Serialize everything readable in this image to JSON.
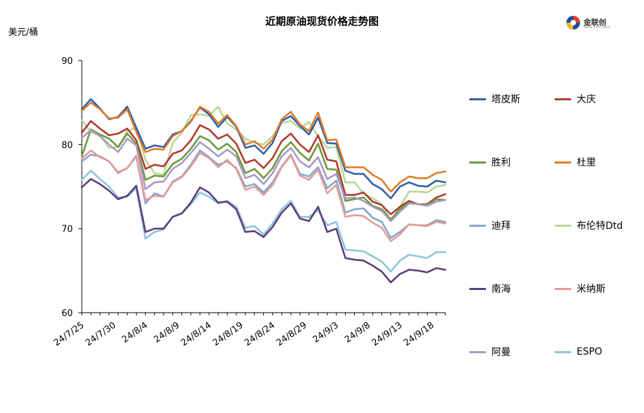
{
  "title": "近期原油现货价格走势图",
  "unit": "美元/桶",
  "logo": {
    "text": "金联创",
    "sub": "www.315i.com"
  },
  "chart_data": {
    "type": "line",
    "title": "近期原油现货价格走势图",
    "ylabel": "美元/桶",
    "ylim": [
      60,
      90
    ],
    "yticks": [
      60,
      70,
      80,
      90
    ],
    "grid": false,
    "legend_position": "right",
    "xtick_labels": [
      "24/7/25",
      "24/7/30",
      "24/8/4",
      "24/8/9",
      "24/8/14",
      "24/8/19",
      "24/8/24",
      "24/8/29",
      "24/9/3",
      "24/9/8",
      "24/9/13",
      "24/9/18"
    ],
    "x": [
      "7/25",
      "7/26",
      "7/29",
      "7/30",
      "7/31",
      "8/1",
      "8/2",
      "8/5",
      "8/6",
      "8/7",
      "8/8",
      "8/9",
      "8/12",
      "8/13",
      "8/14",
      "8/15",
      "8/16",
      "8/19",
      "8/20",
      "8/21",
      "8/22",
      "8/23",
      "8/26",
      "8/27",
      "8/28",
      "8/29",
      "8/30",
      "9/2",
      "9/3",
      "9/4",
      "9/5",
      "9/6",
      "9/9",
      "9/10",
      "9/11",
      "9/12",
      "9/13",
      "9/16",
      "9/17",
      "9/18",
      "9/19"
    ],
    "series": [
      {
        "name": "塔皮斯",
        "color": "#2f5fa8",
        "values": [
          84.2,
          85.4,
          84.3,
          83.0,
          83.3,
          84.5,
          82.0,
          79.5,
          79.9,
          79.7,
          81.2,
          81.6,
          82.8,
          84.4,
          83.6,
          82.1,
          83.3,
          82.1,
          79.6,
          79.9,
          78.9,
          80.2,
          82.8,
          83.4,
          82.2,
          81.2,
          83.2,
          80.2,
          80.1,
          76.9,
          76.5,
          76.5,
          75.3,
          74.7,
          73.6,
          75.0,
          75.5,
          75.1,
          75.0,
          75.7,
          75.5
        ]
      },
      {
        "name": "大庆",
        "color": "#b03a2e",
        "values": [
          81.4,
          82.8,
          81.9,
          81.1,
          81.3,
          81.9,
          80.5,
          77.1,
          77.6,
          77.4,
          78.9,
          79.3,
          80.5,
          82.3,
          81.8,
          80.7,
          81.2,
          80.1,
          77.8,
          78.2,
          77.2,
          78.4,
          80.4,
          81.3,
          80.0,
          79.1,
          81.1,
          78.2,
          78.0,
          74.0,
          74.0,
          74.3,
          73.2,
          72.8,
          71.7,
          72.6,
          73.3,
          72.9,
          72.9,
          73.7,
          74.1
        ]
      },
      {
        "name": "胜利",
        "color": "#6b9b3a",
        "values": [
          78.6,
          81.8,
          81.2,
          80.7,
          79.7,
          81.3,
          80.1,
          75.8,
          76.3,
          76.2,
          77.7,
          78.3,
          79.5,
          81.0,
          80.5,
          79.4,
          80.1,
          79.1,
          76.6,
          77.1,
          76.0,
          77.2,
          79.2,
          80.3,
          79.0,
          78.1,
          80.1,
          77.1,
          77.0,
          73.3,
          73.5,
          73.7,
          72.7,
          72.3,
          71.1,
          72.3,
          73.1,
          72.9,
          72.8,
          73.5,
          73.4
        ]
      },
      {
        "name": "杜里",
        "color": "#e07b2a",
        "values": [
          84.0,
          85.0,
          84.2,
          83.1,
          83.2,
          84.2,
          81.5,
          79.1,
          79.5,
          79.4,
          81.0,
          81.6,
          82.7,
          84.5,
          83.9,
          82.5,
          83.5,
          82.2,
          80.0,
          80.4,
          79.5,
          80.6,
          83.0,
          83.9,
          82.4,
          81.6,
          83.8,
          80.5,
          80.6,
          77.3,
          77.3,
          77.3,
          76.4,
          75.8,
          74.4,
          75.5,
          76.2,
          76.0,
          76.0,
          76.6,
          76.8
        ]
      },
      {
        "name": "迪拜",
        "color": "#7fa7cf",
        "values": [
          78.0,
          78.8,
          78.6,
          78.0,
          76.6,
          77.2,
          78.6,
          73.0,
          74.2,
          73.8,
          75.6,
          76.2,
          77.6,
          79.3,
          78.5,
          77.6,
          78.0,
          77.2,
          75.0,
          75.3,
          74.3,
          75.5,
          77.4,
          78.8,
          76.5,
          76.2,
          77.3,
          74.8,
          75.7,
          71.9,
          72.3,
          72.4,
          71.3,
          70.8,
          68.9,
          69.6,
          70.5,
          70.4,
          70.4,
          71.0,
          70.8
        ]
      },
      {
        "name": "布伦特Dtd",
        "color": "#b5d993",
        "values": [
          82.9,
          81.5,
          81.1,
          79.6,
          79.7,
          81.6,
          82.0,
          78.2,
          76.6,
          76.4,
          80.2,
          81.4,
          83.5,
          83.6,
          83.4,
          84.5,
          82.5,
          81.8,
          80.7,
          80.2,
          80.0,
          81.0,
          82.6,
          82.8,
          81.9,
          82.7,
          81.0,
          79.6,
          79.7,
          75.5,
          75.5,
          74.2,
          73.6,
          72.9,
          70.9,
          72.6,
          74.4,
          74.4,
          74.3,
          75.0,
          75.2
        ]
      },
      {
        "name": "南海",
        "color": "#5c3d7a",
        "values": [
          74.9,
          75.9,
          75.3,
          74.5,
          73.5,
          73.9,
          75.1,
          69.6,
          70.0,
          70.0,
          71.4,
          71.8,
          73.1,
          74.9,
          74.3,
          73.1,
          73.2,
          72.3,
          69.6,
          69.7,
          69.0,
          70.2,
          71.9,
          73.0,
          71.2,
          70.9,
          72.6,
          69.6,
          70.0,
          66.5,
          66.3,
          66.2,
          65.6,
          64.9,
          63.6,
          64.6,
          65.1,
          65.0,
          64.8,
          65.3,
          65.1
        ]
      },
      {
        "name": "米纳斯",
        "color": "#e89a96",
        "values": [
          78.3,
          79.3,
          78.5,
          78.0,
          76.7,
          77.2,
          78.7,
          73.4,
          73.9,
          73.8,
          75.5,
          76.1,
          77.4,
          79.0,
          78.4,
          77.3,
          78.2,
          77.1,
          74.6,
          75.0,
          74.0,
          75.2,
          77.3,
          78.7,
          76.3,
          75.8,
          77.0,
          74.2,
          75.2,
          71.4,
          71.6,
          71.5,
          70.7,
          70.1,
          68.5,
          69.3,
          70.5,
          70.4,
          70.3,
          70.8,
          70.6
        ]
      },
      {
        "name": "阿曼",
        "color": "#a898c7",
        "values": [
          80.8,
          81.7,
          81.0,
          80.0,
          79.1,
          80.7,
          79.9,
          74.7,
          75.5,
          75.6,
          77.1,
          77.8,
          79.0,
          80.3,
          79.5,
          78.6,
          79.4,
          78.6,
          76.0,
          76.4,
          75.3,
          76.6,
          78.6,
          79.6,
          78.0,
          77.3,
          78.5,
          75.9,
          76.5,
          73.6,
          73.7,
          73.3,
          72.6,
          72.1,
          70.9,
          72.0,
          73.0,
          72.9,
          72.7,
          73.2,
          73.4
        ]
      },
      {
        "name": "ESPO",
        "color": "#8fc3dc",
        "values": [
          75.8,
          76.9,
          75.9,
          75.0,
          73.7,
          73.8,
          74.8,
          68.8,
          69.6,
          69.9,
          71.4,
          71.8,
          72.9,
          74.3,
          73.8,
          73.0,
          73.3,
          72.6,
          70.1,
          70.3,
          69.3,
          70.6,
          72.3,
          73.3,
          71.4,
          71.4,
          72.2,
          70.4,
          70.8,
          67.5,
          67.4,
          67.3,
          66.7,
          66.1,
          64.9,
          66.2,
          66.9,
          66.7,
          66.5,
          67.2,
          67.2
        ]
      }
    ]
  }
}
